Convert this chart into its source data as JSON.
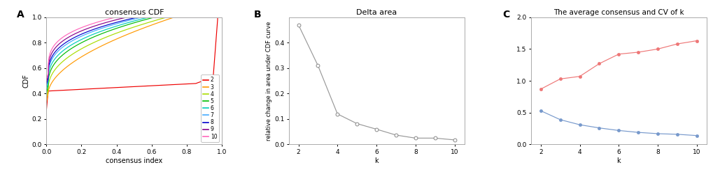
{
  "panel_A": {
    "title": "consensus CDF",
    "xlabel": "consensus index",
    "ylabel": "CDF",
    "xlim": [
      0.0,
      1.0
    ],
    "ylim": [
      0.0,
      1.0
    ],
    "xticks": [
      0.0,
      0.2,
      0.4,
      0.6,
      0.8,
      1.0
    ],
    "yticks": [
      0.0,
      0.2,
      0.4,
      0.6,
      0.8,
      1.0
    ],
    "colors": {
      "2": "#EE0000",
      "3": "#FF9900",
      "4": "#AADD00",
      "5": "#00BB00",
      "6": "#00CCBB",
      "7": "#44AAFF",
      "8": "#0000CC",
      "9": "#880088",
      "10": "#FF66BB"
    },
    "legend_labels": [
      "2",
      "3",
      "4",
      "5",
      "6",
      "7",
      "8",
      "9",
      "10"
    ]
  },
  "panel_B": {
    "title": "Delta area",
    "xlabel": "k",
    "ylabel": "relative change in area under CDF curve",
    "k": [
      2,
      3,
      4,
      5,
      6,
      7,
      8,
      9,
      10
    ],
    "values": [
      0.47,
      0.31,
      0.12,
      0.082,
      0.06,
      0.037,
      0.025,
      0.025,
      0.018
    ],
    "xlim": [
      1.5,
      10.5
    ],
    "ylim": [
      0.0,
      0.5
    ],
    "xticks": [
      2,
      4,
      6,
      8,
      10
    ],
    "yticks": [
      0.0,
      0.1,
      0.2,
      0.3,
      0.4
    ],
    "line_color": "#999999",
    "marker": "o",
    "marker_facecolor": "white",
    "marker_edgecolor": "#888888"
  },
  "panel_C": {
    "title": "The average consensus and CV of k",
    "xlabel": "k",
    "k": [
      2,
      3,
      4,
      5,
      6,
      7,
      8,
      9,
      10
    ],
    "blue_values": [
      0.53,
      0.39,
      0.31,
      0.26,
      0.22,
      0.19,
      0.17,
      0.16,
      0.14
    ],
    "red_values": [
      0.87,
      1.03,
      1.07,
      1.27,
      1.42,
      1.45,
      1.5,
      1.58,
      1.63
    ],
    "xlim": [
      1.5,
      10.5
    ],
    "ylim": [
      0.0,
      2.0
    ],
    "xticks": [
      2,
      4,
      6,
      8,
      10
    ],
    "yticks": [
      0.0,
      0.5,
      1.0,
      1.5,
      2.0
    ],
    "blue_color": "#7799CC",
    "red_color": "#EE7777",
    "blue_marker": "o",
    "red_marker": "o"
  },
  "background_color": "#FFFFFF",
  "panel_bg_color": "#FFFFFF"
}
